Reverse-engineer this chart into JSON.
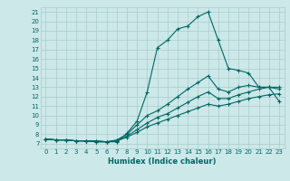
{
  "xlabel": "Humidex (Indice chaleur)",
  "ylabel": "",
  "bg_color": "#cce8e8",
  "grid_color": "#aacccc",
  "line_color": "#006666",
  "xlim": [
    -0.5,
    23.5
  ],
  "ylim": [
    6.5,
    21.5
  ],
  "xticks": [
    0,
    1,
    2,
    3,
    4,
    5,
    6,
    7,
    8,
    9,
    10,
    11,
    12,
    13,
    14,
    15,
    16,
    17,
    18,
    19,
    20,
    21,
    22,
    23
  ],
  "yticks": [
    7,
    8,
    9,
    10,
    11,
    12,
    13,
    14,
    15,
    16,
    17,
    18,
    19,
    20,
    21
  ],
  "lines": [
    {
      "x": [
        0,
        1,
        2,
        3,
        4,
        5,
        6,
        7,
        8,
        9,
        10,
        11,
        12,
        13,
        14,
        15,
        16,
        17,
        18,
        19,
        20,
        21,
        22,
        23
      ],
      "y": [
        7.5,
        7.4,
        7.4,
        7.3,
        7.3,
        7.3,
        7.2,
        7.2,
        8.1,
        9.4,
        12.5,
        17.2,
        18.0,
        19.2,
        19.5,
        20.5,
        21.0,
        18.0,
        15.0,
        14.8,
        14.5,
        13.0,
        13.0,
        11.5
      ],
      "marker": "+"
    },
    {
      "x": [
        0,
        1,
        2,
        3,
        4,
        5,
        6,
        7,
        8,
        9,
        10,
        11,
        12,
        13,
        14,
        15,
        16,
        17,
        18,
        19,
        20,
        21,
        22,
        23
      ],
      "y": [
        7.5,
        7.4,
        7.4,
        7.3,
        7.3,
        7.3,
        7.2,
        7.4,
        8.0,
        9.0,
        10.0,
        10.5,
        11.2,
        12.0,
        12.8,
        13.5,
        14.2,
        12.8,
        12.5,
        13.0,
        13.2,
        13.0,
        13.0,
        12.8
      ],
      "marker": "+"
    },
    {
      "x": [
        0,
        1,
        2,
        3,
        4,
        5,
        6,
        7,
        8,
        9,
        10,
        11,
        12,
        13,
        14,
        15,
        16,
        17,
        18,
        19,
        20,
        21,
        22,
        23
      ],
      "y": [
        7.5,
        7.4,
        7.4,
        7.3,
        7.3,
        7.2,
        7.2,
        7.3,
        7.8,
        8.5,
        9.2,
        9.8,
        10.2,
        10.8,
        11.4,
        12.0,
        12.5,
        11.8,
        11.8,
        12.2,
        12.5,
        12.8,
        13.0,
        13.0
      ],
      "marker": "+"
    },
    {
      "x": [
        0,
        1,
        2,
        3,
        4,
        5,
        6,
        7,
        8,
        9,
        10,
        11,
        12,
        13,
        14,
        15,
        16,
        17,
        18,
        19,
        20,
        21,
        22,
        23
      ],
      "y": [
        7.5,
        7.4,
        7.4,
        7.3,
        7.3,
        7.2,
        7.2,
        7.3,
        7.7,
        8.2,
        8.8,
        9.2,
        9.6,
        10.0,
        10.4,
        10.8,
        11.2,
        11.0,
        11.2,
        11.5,
        11.8,
        12.0,
        12.2,
        12.3
      ],
      "marker": "+"
    }
  ]
}
